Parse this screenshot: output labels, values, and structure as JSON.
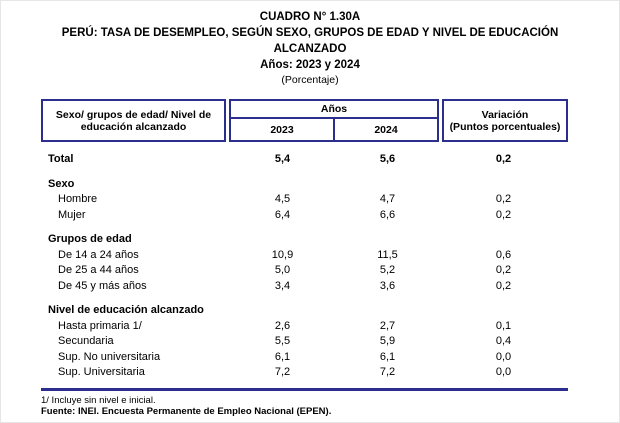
{
  "title": {
    "line1": "CUADRO N° 1.30A",
    "line2": "PERÚ: TASA DE DESEMPLEO, SEGÚN SEXO, GRUPOS DE EDAD Y NIVEL DE EDUCACIÓN",
    "line3": "ALCANZADO",
    "line4": "Años: 2023 y 2024",
    "line5": "(Porcentaje)"
  },
  "table": {
    "header": {
      "col_label": "Sexo/ grupos de edad/ Nivel de educación alcanzado",
      "years_group": "Años",
      "year_2023": "2023",
      "year_2024": "2024",
      "variation_line1": "Variación",
      "variation_line2": "(Puntos porcentuales)"
    },
    "rows": [
      {
        "type": "total",
        "label": "Total",
        "y2023": "5,4",
        "y2024": "5,6",
        "variation": "0,2"
      },
      {
        "type": "section",
        "label": "Sexo",
        "y2023": "",
        "y2024": "",
        "variation": ""
      },
      {
        "type": "item",
        "label": "Hombre",
        "y2023": "4,5",
        "y2024": "4,7",
        "variation": "0,2"
      },
      {
        "type": "item",
        "label": "Mujer",
        "y2023": "6,4",
        "y2024": "6,6",
        "variation": "0,2"
      },
      {
        "type": "section",
        "label": "Grupos de edad",
        "y2023": "",
        "y2024": "",
        "variation": ""
      },
      {
        "type": "item",
        "label": "De 14 a 24 años",
        "y2023": "10,9",
        "y2024": "11,5",
        "variation": "0,6"
      },
      {
        "type": "item",
        "label": "De 25 a 44 años",
        "y2023": "5,0",
        "y2024": "5,2",
        "variation": "0,2"
      },
      {
        "type": "item",
        "label": "De 45 y más años",
        "y2023": "3,4",
        "y2024": "3,6",
        "variation": "0,2"
      },
      {
        "type": "section",
        "label": "Nivel de educación alcanzado",
        "y2023": "",
        "y2024": "",
        "variation": ""
      },
      {
        "type": "item",
        "label": "Hasta primaria 1/",
        "y2023": "2,6",
        "y2024": "2,7",
        "variation": "0,1"
      },
      {
        "type": "item",
        "label": "Secundaria",
        "y2023": "5,5",
        "y2024": "5,9",
        "variation": "0,4"
      },
      {
        "type": "item",
        "label": "Sup. No universitaria",
        "y2023": "6,1",
        "y2024": "6,1",
        "variation": "0,0"
      },
      {
        "type": "item",
        "label": "Sup. Universitaria",
        "y2023": "7,2",
        "y2024": "7,2",
        "variation": "0,0"
      }
    ]
  },
  "footer": {
    "note": "1/ Incluye sin nivel e inicial.",
    "source": "Fuente: INEI. Encuesta Permanente de Empleo Nacional (EPEN)."
  },
  "colors": {
    "border": "#2b2e8c"
  }
}
